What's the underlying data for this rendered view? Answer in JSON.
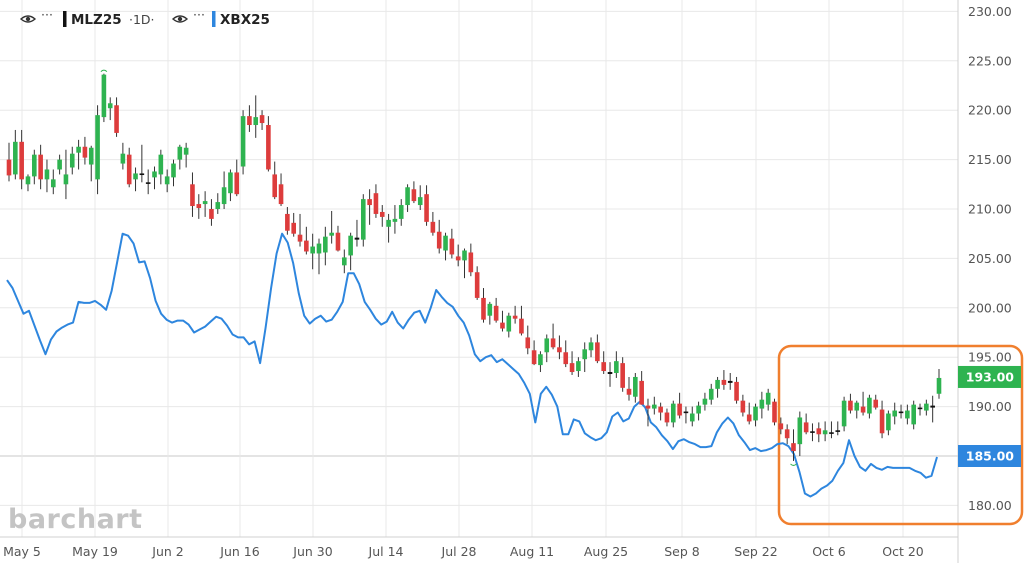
{
  "legend": {
    "eye_icon": "eye-icon",
    "dots": "···",
    "series1": {
      "symbol": "MLZ25",
      "interval": "·1D·",
      "color": "#111111"
    },
    "series2": {
      "symbol": "XBX25",
      "color": "#2e86de"
    }
  },
  "watermark": "barchart",
  "price_tags": [
    {
      "value": "193.00",
      "color": "#2eb350"
    },
    {
      "value": "185.00",
      "color": "#2e86de"
    }
  ],
  "colors": {
    "up": "#2eb350",
    "down": "#dd3c3c",
    "doji": "#111111",
    "line": "#2e86de",
    "highlight": "#f07f2e",
    "grid": "#e8e8e8"
  },
  "chart_data": {
    "type": "candlestick+line",
    "x_tick_labels": [
      "May 5",
      "May 19",
      "Jun 2",
      "Jun 16",
      "Jun 30",
      "Jul 14",
      "Jul 28",
      "Aug 11",
      "Aug 25",
      "Sep 8",
      "Sep 22",
      "Oct 6",
      "Oct 20"
    ],
    "y_tick_labels": [
      "180.00",
      "185.00",
      "190.00",
      "195.00",
      "200.00",
      "205.00",
      "210.00",
      "215.00",
      "220.00",
      "225.00",
      "230.00"
    ],
    "ylim": [
      176,
      231
    ],
    "grid": true,
    "highlight_box": {
      "x_from": "Sep 26",
      "x_to": "Oct 29",
      "y_from": 178.5,
      "y_to": 196
    },
    "series": [
      {
        "name": "MLZ25",
        "kind": "candlestick",
        "ohlc": [
          [
            215,
            216.7,
            212.8,
            213.4
          ],
          [
            213.5,
            218,
            213,
            216.8
          ],
          [
            216.8,
            218,
            212,
            213
          ],
          [
            212.5,
            213.5,
            211.8,
            213.3
          ],
          [
            213.3,
            216,
            212.5,
            215.5
          ],
          [
            215.5,
            216.5,
            212,
            213
          ],
          [
            213,
            215,
            211.7,
            214
          ],
          [
            212.2,
            214,
            211.5,
            213
          ],
          [
            214,
            215.5,
            213.5,
            215
          ],
          [
            212.5,
            216,
            211,
            213.5
          ],
          [
            214.2,
            216.3,
            213.5,
            215.6
          ],
          [
            215.7,
            217,
            214,
            216.3
          ],
          [
            216.3,
            217.3,
            214.5,
            215.2
          ],
          [
            214.5,
            216.4,
            212.8,
            216.2
          ],
          [
            213,
            220.5,
            211.5,
            219.5
          ],
          [
            219.3,
            223.7,
            218.8,
            223.6
          ],
          [
            220.2,
            221.3,
            219,
            220.7
          ],
          [
            220.5,
            221.3,
            217.3,
            217.7
          ],
          [
            214.6,
            216.7,
            214,
            215.6
          ],
          [
            215.5,
            216.2,
            212.2,
            212.5
          ],
          [
            213,
            214.2,
            211.8,
            213.6
          ],
          [
            213.6,
            216.5,
            212.7,
            213.6
          ],
          [
            212.6,
            214,
            211.5,
            212.7
          ],
          [
            213.2,
            214.3,
            212,
            213.8
          ],
          [
            213.5,
            216,
            212.5,
            215.5
          ],
          [
            212.5,
            214,
            211.7,
            213.3
          ],
          [
            213.2,
            215,
            212.3,
            214.6
          ],
          [
            215,
            216.5,
            214,
            216.3
          ],
          [
            215.5,
            216.7,
            214.2,
            216.2
          ],
          [
            212.5,
            213.7,
            209.2,
            210.3
          ],
          [
            210.5,
            211.5,
            209,
            210.1
          ],
          [
            210.5,
            211.8,
            209.2,
            210.8
          ],
          [
            210,
            211,
            208.3,
            209
          ],
          [
            210,
            211.6,
            209.5,
            210.7
          ],
          [
            210.5,
            213.8,
            210,
            212.2
          ],
          [
            211.6,
            214,
            210.8,
            213.7
          ],
          [
            213.7,
            215,
            211.3,
            211.5
          ],
          [
            214.3,
            220,
            213.5,
            219.4
          ],
          [
            219.4,
            220.5,
            217.8,
            218.5
          ],
          [
            218.5,
            221.5,
            217.2,
            219.3
          ],
          [
            219.5,
            220,
            218,
            218.7
          ],
          [
            218.5,
            219.4,
            213.8,
            214
          ],
          [
            213.5,
            214.8,
            211,
            211.2
          ],
          [
            212.5,
            213.6,
            210.3,
            210.5
          ],
          [
            209.5,
            210.2,
            207.4,
            207.8
          ],
          [
            208.6,
            209.6,
            207.2,
            207.5
          ],
          [
            207.4,
            209.5,
            206.2,
            206.7
          ],
          [
            206.8,
            208.2,
            205.4,
            205.7
          ],
          [
            205.5,
            207.5,
            203.9,
            206.2
          ],
          [
            205.5,
            207,
            203.4,
            206.5
          ],
          [
            205.6,
            208.2,
            204.3,
            207.2
          ],
          [
            207.3,
            209.8,
            206.5,
            207.6
          ],
          [
            207.6,
            208.3,
            205.7,
            205.8
          ],
          [
            204.3,
            205.9,
            203.5,
            205.1
          ],
          [
            205.3,
            207.6,
            203.8,
            207.3
          ],
          [
            207.1,
            208.9,
            206.2,
            206.9
          ],
          [
            206.9,
            211.5,
            206.2,
            211
          ],
          [
            211,
            212,
            208.4,
            210.4
          ],
          [
            211.6,
            212.5,
            209.1,
            209.5
          ],
          [
            209.7,
            210.4,
            208.2,
            209.2
          ],
          [
            208.2,
            209.5,
            206.6,
            208.9
          ],
          [
            208.7,
            210.4,
            207.5,
            209
          ],
          [
            209,
            211,
            208.3,
            210.4
          ],
          [
            210.4,
            212.5,
            209.7,
            212.2
          ],
          [
            212,
            212.8,
            210.6,
            210.8
          ],
          [
            210.4,
            212.4,
            209.9,
            211.2
          ],
          [
            211.5,
            212.4,
            208.3,
            208.7
          ],
          [
            208.7,
            209.7,
            207.3,
            207.6
          ],
          [
            207.7,
            208.9,
            205.5,
            206
          ],
          [
            205.8,
            207.6,
            204.8,
            207.3
          ],
          [
            207,
            208,
            205,
            205.4
          ],
          [
            205.2,
            206.4,
            204.2,
            204.8
          ],
          [
            204.8,
            206,
            203,
            205.8
          ],
          [
            205.6,
            206.5,
            203.2,
            203.6
          ],
          [
            203.6,
            204.2,
            200.8,
            201
          ],
          [
            201,
            202,
            198.5,
            198.8
          ],
          [
            199.2,
            200.6,
            198.3,
            200.4
          ],
          [
            200.2,
            201,
            198.5,
            198.7
          ],
          [
            198.5,
            199.7,
            197.6,
            197.9
          ],
          [
            197.6,
            199.5,
            197,
            199.2
          ],
          [
            199.2,
            200.2,
            198.4,
            198.9
          ],
          [
            198.9,
            200.2,
            197.2,
            197.4
          ],
          [
            197,
            198.2,
            195.3,
            195.9
          ],
          [
            195.7,
            196.7,
            194.2,
            194.3
          ],
          [
            194.2,
            195.6,
            193.5,
            195.3
          ],
          [
            195.5,
            197.3,
            194.5,
            196.9
          ],
          [
            196.9,
            198.4,
            195.8,
            196
          ],
          [
            196,
            197.2,
            194.8,
            195.5
          ],
          [
            195.5,
            196.7,
            194,
            194.3
          ],
          [
            194.4,
            195.6,
            193.2,
            193.5
          ],
          [
            193.6,
            195,
            193,
            194.6
          ],
          [
            194.8,
            196.5,
            193.5,
            195.8
          ],
          [
            195.7,
            197,
            195,
            196.5
          ],
          [
            196.5,
            197.3,
            194.4,
            194.6
          ],
          [
            194.5,
            195.6,
            193.3,
            193.6
          ],
          [
            193.5,
            194.5,
            192,
            193.3
          ],
          [
            193.4,
            195.6,
            192.9,
            194.6
          ],
          [
            194.4,
            195,
            191.5,
            191.9
          ],
          [
            191.8,
            193,
            190.6,
            191.2
          ],
          [
            191,
            193.4,
            190.4,
            193
          ],
          [
            192.6,
            193.6,
            190.2,
            190.2
          ],
          [
            190.1,
            190.8,
            188,
            189.8
          ],
          [
            189.8,
            191,
            189.2,
            190.2
          ],
          [
            190,
            190.4,
            188.6,
            189.4
          ],
          [
            189.4,
            189.8,
            188,
            188.4
          ],
          [
            188.4,
            190.6,
            187.9,
            190.3
          ],
          [
            190.3,
            191.4,
            188.8,
            189.1
          ],
          [
            189.5,
            190,
            188.3,
            189.5
          ],
          [
            188.5,
            190,
            188,
            189.3
          ],
          [
            189.3,
            190.5,
            188.6,
            190.1
          ],
          [
            190.2,
            191.4,
            189.6,
            190.8
          ],
          [
            190.7,
            192.3,
            190.2,
            191.8
          ],
          [
            191.8,
            193,
            190.9,
            192.7
          ],
          [
            192.7,
            193.7,
            191.7,
            192.2
          ],
          [
            192.4,
            193.4,
            191.7,
            192.6
          ],
          [
            192.5,
            193,
            190.3,
            190.6
          ],
          [
            190.6,
            191.2,
            189,
            189.4
          ],
          [
            189.2,
            190.4,
            188.2,
            188.5
          ],
          [
            188.6,
            190.3,
            188,
            190
          ],
          [
            189.8,
            191.5,
            188.8,
            190.7
          ],
          [
            190.2,
            191.8,
            189.6,
            191.4
          ],
          [
            190.5,
            190.8,
            188.1,
            188.4
          ],
          [
            188.3,
            188.9,
            187.2,
            187.7
          ],
          [
            187.7,
            188.2,
            186.2,
            186.8
          ],
          [
            186.3,
            187.7,
            184.5,
            185.5
          ],
          [
            186.2,
            189.5,
            185,
            188.9
          ],
          [
            188.4,
            189.3,
            187.2,
            187.4
          ],
          [
            187.5,
            188.3,
            186.5,
            187.5
          ],
          [
            187.8,
            188.4,
            186.4,
            187.2
          ],
          [
            187.2,
            188.5,
            186.5,
            187.6
          ],
          [
            187.3,
            188.5,
            186.8,
            187.4
          ],
          [
            187.6,
            188.5,
            187.1,
            187.5
          ],
          [
            188,
            191,
            187.5,
            190.6
          ],
          [
            190.6,
            191.3,
            189.3,
            189.6
          ],
          [
            189.6,
            190.6,
            188.8,
            190.4
          ],
          [
            190,
            191.5,
            189.1,
            189.4
          ],
          [
            189.3,
            191.2,
            188.8,
            190.9
          ],
          [
            190.7,
            191.2,
            189.7,
            189.9
          ],
          [
            189.7,
            190.6,
            186.8,
            187.3
          ],
          [
            187.6,
            189.6,
            187.1,
            189.3
          ],
          [
            189,
            190.4,
            188.2,
            189.6
          ],
          [
            189.5,
            190.2,
            188.8,
            189.4
          ],
          [
            188.8,
            190.2,
            188.2,
            189.6
          ],
          [
            188.2,
            190.6,
            187.7,
            190.2
          ],
          [
            189.8,
            190.3,
            189.1,
            189.9
          ],
          [
            189.6,
            190.7,
            189.1,
            190.3
          ],
          [
            189.9,
            191.1,
            188.4,
            190.1
          ],
          [
            191.3,
            193.8,
            190.8,
            192.9
          ]
        ]
      },
      {
        "name": "XBX25",
        "kind": "line",
        "values": [
          202.8,
          202,
          200.7,
          199.4,
          199.7,
          198.2,
          196.7,
          195.3,
          196.8,
          197.6,
          198,
          198.3,
          198.5,
          200.6,
          200.5,
          200.5,
          200.7,
          200.3,
          199.8,
          201.7,
          204.6,
          207.5,
          207.3,
          206.5,
          204.6,
          204.7,
          203,
          200.7,
          199.4,
          198.8,
          198.5,
          198.7,
          198.7,
          198.3,
          197.5,
          197.8,
          198.1,
          198.6,
          199.1,
          198.9,
          198.2,
          197.3,
          197,
          197,
          196.3,
          196.6,
          194.4,
          198,
          202,
          205.5,
          207.5,
          206.6,
          204.5,
          201.5,
          199.2,
          198.4,
          198.9,
          199.2,
          198.6,
          198.8,
          199.6,
          200.6,
          203.5,
          203.5,
          202.4,
          200.6,
          199.8,
          198.9,
          198.3,
          198.6,
          199.6,
          198.5,
          197.9,
          198.8,
          199.5,
          199.7,
          198.5,
          200,
          201.8,
          201.1,
          200.5,
          200.1,
          199.2,
          198.5,
          197.2,
          195.3,
          194.6,
          195,
          195.2,
          194.5,
          194.8,
          194.3,
          193.8,
          193.3,
          192.4,
          191.3,
          188.4,
          191.3,
          192,
          191.2,
          190,
          187.2,
          187.2,
          188.7,
          188.5,
          187.3,
          186.9,
          186.6,
          186.8,
          187.4,
          189,
          189.4,
          188.5,
          188.8,
          190,
          190.5,
          189.9,
          188.4,
          187.9,
          187.1,
          186.5,
          185.7,
          186.5,
          186.7,
          186.4,
          186.2,
          185.9,
          185.9,
          186,
          187.4,
          188.3,
          188.9,
          188.3,
          187.1,
          186.4,
          185.6,
          185.8,
          185.5,
          185.6,
          185.8,
          186.2,
          186.3,
          186,
          185.2,
          183.4,
          181.2,
          180.9,
          181.2,
          181.7,
          182,
          182.5,
          183.5,
          184.3,
          186.6,
          185,
          183.9,
          183.5,
          184.2,
          183.8,
          183.6,
          183.9,
          183.8,
          183.8,
          183.8,
          183.8,
          183.5,
          183.3,
          182.8,
          183,
          184.9
        ]
      }
    ]
  }
}
